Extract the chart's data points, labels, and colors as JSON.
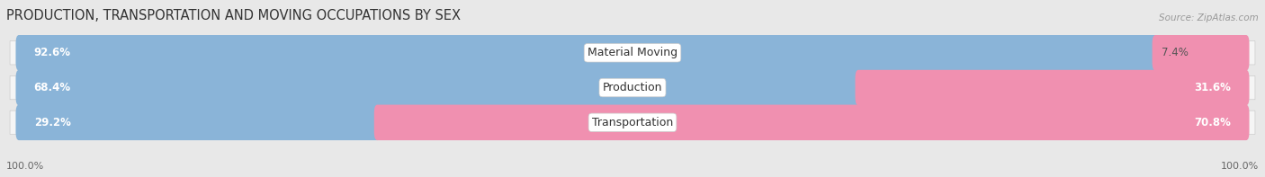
{
  "title": "PRODUCTION, TRANSPORTATION AND MOVING OCCUPATIONS BY SEX",
  "source": "Source: ZipAtlas.com",
  "categories": [
    "Material Moving",
    "Production",
    "Transportation"
  ],
  "male_pct": [
    92.6,
    68.4,
    29.2
  ],
  "female_pct": [
    7.4,
    31.6,
    70.8
  ],
  "male_color": "#8ab4d8",
  "female_color": "#f090b0",
  "bg_color": "#e8e8e8",
  "row_bg_color": "#f5f5f5",
  "bar_height": 0.52,
  "title_fontsize": 10.5,
  "label_fontsize": 9,
  "pct_fontsize": 8.5
}
